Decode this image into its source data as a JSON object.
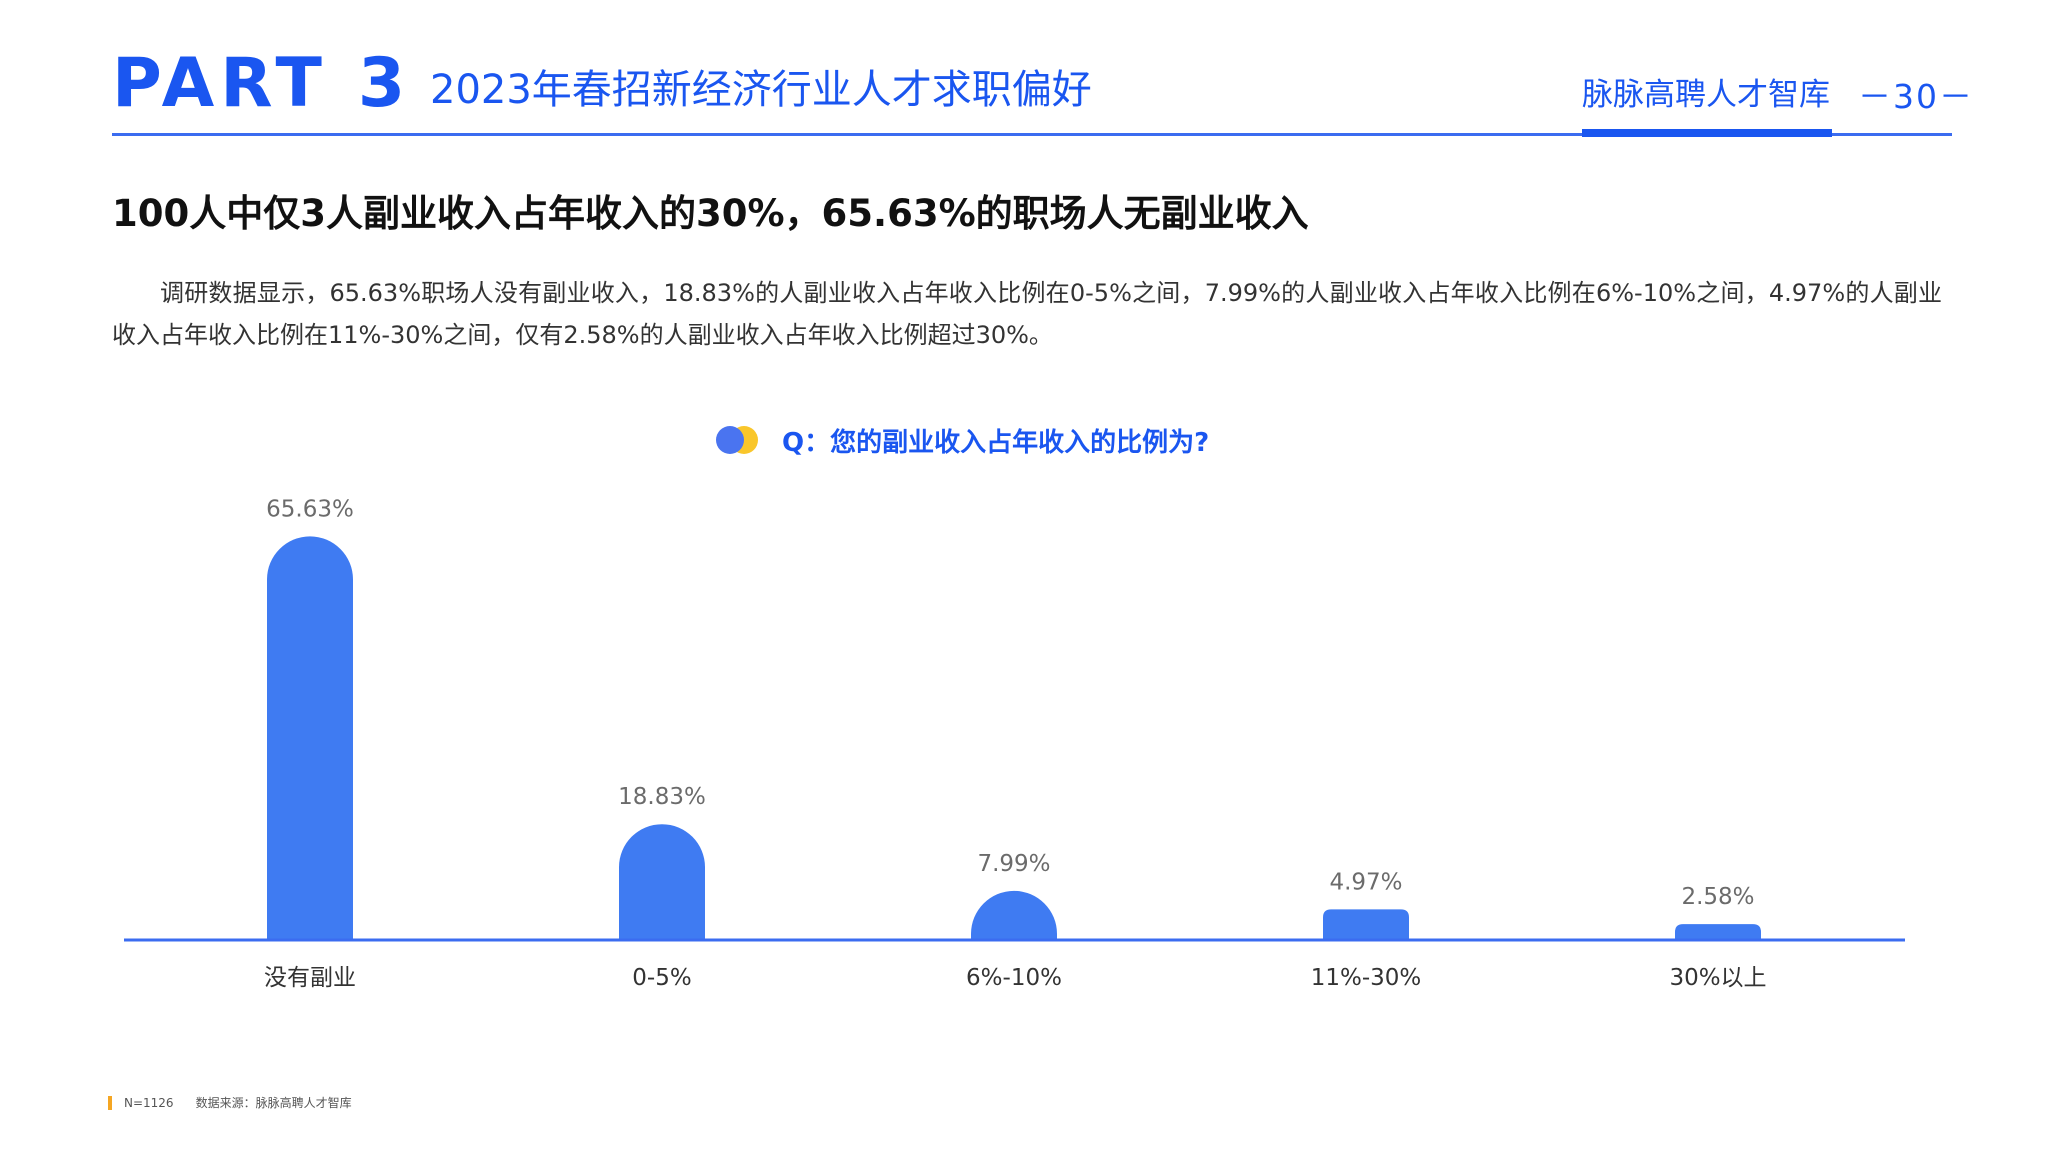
{
  "header": {
    "part_label": "PART",
    "part_number": "3",
    "section_title": "2023年春招新经济行业人才求职偏好",
    "brand": "脉脉高聘人才智库",
    "page_number": "－30－"
  },
  "headline": "100人中仅3人副业收入占年收入的30%，65.63%的职场人无副业收入",
  "body_text": "调研数据显示，65.63%职场人没有副业收入，18.83%的人副业收入占年收入比例在0-5%之间，7.99%的人副业收入占年收入比例在6%-10%之间，4.97%的人副业收入占年收入比例在11%-30%之间，仅有2.58%的人副业收入占年收入比例超过30%。",
  "question": "Q：您的副业收入占年收入的比例为?",
  "colors": {
    "brand_blue": "#1a56f0",
    "bar_blue": "#3f7bf2",
    "axis_blue": "#3b6cf0",
    "dot_yellow": "#f9c62b",
    "footer_accent": "#f5a623"
  },
  "chart_data": {
    "type": "bar",
    "categories": [
      "没有副业",
      "0-5%",
      "6%-10%",
      "11%-30%",
      "30%以上"
    ],
    "values": [
      65.63,
      18.83,
      7.99,
      4.97,
      2.58
    ],
    "value_labels": [
      "65.63%",
      "18.83%",
      "7.99%",
      "4.97%",
      "2.58%"
    ],
    "unit": "%",
    "grid": false,
    "legend": "none"
  },
  "footer": {
    "sample": "N=1126",
    "source": "数据来源：脉脉高聘人才智库"
  }
}
